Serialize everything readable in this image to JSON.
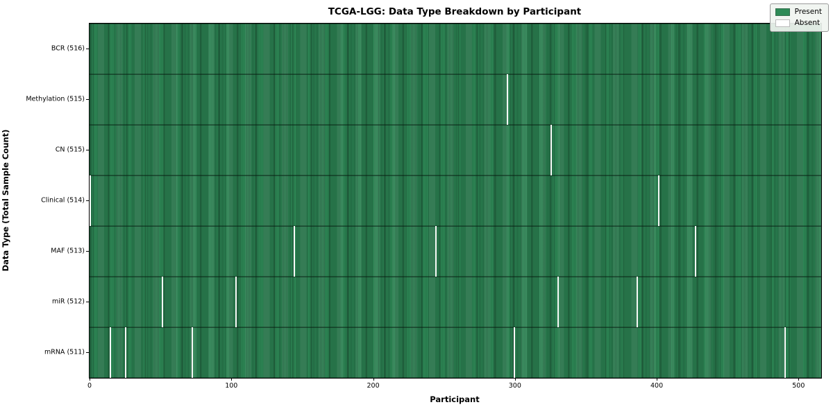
{
  "figure": {
    "title": "TCGA-LGG: Data Type Breakdown by Participant",
    "xlabel": "Participant",
    "ylabel": "Data Type (Total Sample Count)"
  },
  "legend": {
    "items": [
      {
        "label": "Present",
        "color": "#2e8b57"
      },
      {
        "label": "Absent",
        "color": "#ffffff"
      }
    ]
  },
  "chart_data": {
    "type": "heatmap",
    "title": "TCGA-LGG: Data Type Breakdown by Participant",
    "xlabel": "Participant",
    "ylabel": "Data Type (Total Sample Count)",
    "legend": [
      "Present",
      "Absent"
    ],
    "legend_position": "upper right",
    "present_color": "#2e8b57",
    "absent_color": "#ffffff",
    "n_participants": 516,
    "xlim": [
      -0.5,
      515.5
    ],
    "x_ticks": [
      0,
      100,
      200,
      300,
      400,
      500
    ],
    "grid": false,
    "rows": [
      {
        "data_type": "BCR",
        "label": "BCR (516)",
        "sample_count": 516,
        "absent_participants": []
      },
      {
        "data_type": "Methylation",
        "label": "Methylation (515)",
        "sample_count": 515,
        "absent_participants": [
          294
        ]
      },
      {
        "data_type": "CN",
        "label": "CN (515)",
        "sample_count": 515,
        "absent_participants": [
          325
        ]
      },
      {
        "data_type": "Clinical",
        "label": "Clinical (514)",
        "sample_count": 514,
        "absent_participants": [
          0,
          401
        ]
      },
      {
        "data_type": "MAF",
        "label": "MAF (513)",
        "sample_count": 513,
        "absent_participants": [
          144,
          244,
          427
        ]
      },
      {
        "data_type": "miR",
        "label": "miR (512)",
        "sample_count": 512,
        "absent_participants": [
          51,
          103,
          330,
          386
        ]
      },
      {
        "data_type": "mRNA",
        "label": "mRNA (511)",
        "sample_count": 511,
        "absent_participants": [
          14,
          25,
          72,
          299,
          490
        ]
      }
    ]
  }
}
